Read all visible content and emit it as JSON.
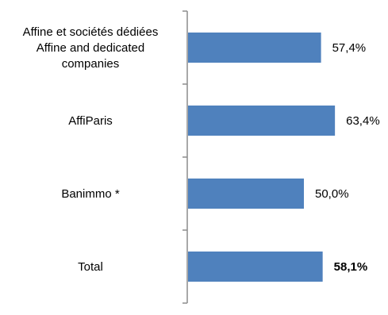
{
  "chart_data": {
    "type": "bar",
    "orientation": "horizontal",
    "categories": [
      [
        "Affine et sociétés dédiées",
        "Affine and dedicated",
        "companies"
      ],
      [
        "AffiParis"
      ],
      [
        "Banimmo *"
      ],
      [
        "Total"
      ]
    ],
    "values": [
      57.4,
      63.4,
      50.0,
      58.1
    ],
    "value_labels": [
      "57,4%",
      "63,4%",
      "50,0%",
      "58,1%"
    ],
    "bold_value_label_index": 3,
    "xlim": [
      0,
      100
    ],
    "grid": false,
    "legend": "none",
    "title": "",
    "xlabel": "",
    "ylabel": "",
    "colors": {
      "bar": "#4F81BD",
      "axis": "#8C8C8C",
      "text": "#000000"
    }
  }
}
